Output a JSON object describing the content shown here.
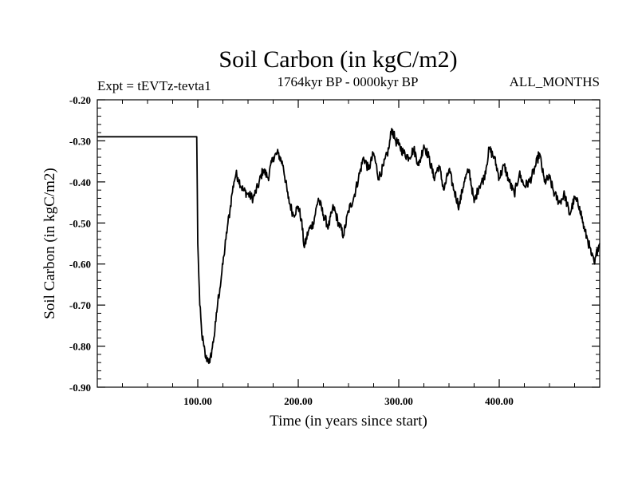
{
  "chart_data": {
    "type": "line",
    "title": "Soil Carbon (in kgC/m2)",
    "subtitle_left": "Expt = tEVTz-tevta1",
    "subtitle_center": "1764kyr BP - 0000kyr BP",
    "subtitle_right": "ALL_MONTHS",
    "xlabel": "Time (in years since start)",
    "ylabel": "Soil Carbon (in kgC/m2)",
    "xlim": [
      0,
      500
    ],
    "ylim": [
      -0.9,
      -0.2
    ],
    "x_ticks": [
      100,
      200,
      300,
      400
    ],
    "x_tick_labels": [
      "100.00",
      "200.00",
      "300.00",
      "400.00"
    ],
    "y_ticks": [
      -0.2,
      -0.3,
      -0.4,
      -0.5,
      -0.6,
      -0.7,
      -0.8,
      -0.9
    ],
    "y_tick_labels": [
      "-0.20",
      "-0.30",
      "-0.40",
      "-0.50",
      "-0.60",
      "-0.70",
      "-0.80",
      "-0.90"
    ],
    "grid": false,
    "series": [
      {
        "name": "Soil Carbon",
        "x": [
          0,
          20,
          40,
          60,
          80,
          99,
          100,
          102,
          104,
          106,
          108,
          110,
          112,
          114,
          116,
          118,
          120,
          122,
          124,
          126,
          128,
          130,
          132,
          134,
          136,
          138,
          140,
          145,
          150,
          155,
          160,
          165,
          170,
          175,
          180,
          185,
          190,
          195,
          200,
          203,
          206,
          210,
          215,
          220,
          225,
          230,
          235,
          240,
          245,
          250,
          255,
          260,
          265,
          270,
          275,
          280,
          285,
          290,
          293,
          297,
          300,
          305,
          310,
          315,
          320,
          325,
          330,
          335,
          340,
          345,
          350,
          355,
          360,
          365,
          370,
          375,
          380,
          385,
          390,
          395,
          400,
          405,
          410,
          415,
          420,
          425,
          430,
          435,
          440,
          445,
          450,
          455,
          460,
          465,
          470,
          475,
          480,
          485,
          488,
          490,
          492,
          495,
          498,
          500
        ],
        "y": [
          -0.29,
          -0.29,
          -0.29,
          -0.29,
          -0.29,
          -0.29,
          -0.55,
          -0.7,
          -0.77,
          -0.8,
          -0.83,
          -0.83,
          -0.84,
          -0.81,
          -0.78,
          -0.74,
          -0.69,
          -0.66,
          -0.62,
          -0.58,
          -0.54,
          -0.5,
          -0.47,
          -0.43,
          -0.4,
          -0.38,
          -0.39,
          -0.42,
          -0.43,
          -0.44,
          -0.41,
          -0.37,
          -0.39,
          -0.34,
          -0.33,
          -0.36,
          -0.44,
          -0.48,
          -0.46,
          -0.49,
          -0.56,
          -0.52,
          -0.5,
          -0.44,
          -0.48,
          -0.51,
          -0.46,
          -0.5,
          -0.53,
          -0.47,
          -0.44,
          -0.39,
          -0.34,
          -0.37,
          -0.33,
          -0.39,
          -0.36,
          -0.32,
          -0.27,
          -0.3,
          -0.31,
          -0.33,
          -0.34,
          -0.32,
          -0.36,
          -0.31,
          -0.34,
          -0.39,
          -0.36,
          -0.42,
          -0.37,
          -0.42,
          -0.46,
          -0.4,
          -0.37,
          -0.45,
          -0.41,
          -0.39,
          -0.32,
          -0.34,
          -0.39,
          -0.36,
          -0.4,
          -0.43,
          -0.38,
          -0.41,
          -0.4,
          -0.37,
          -0.33,
          -0.4,
          -0.39,
          -0.43,
          -0.45,
          -0.43,
          -0.48,
          -0.44,
          -0.46,
          -0.52,
          -0.54,
          -0.56,
          -0.58,
          -0.6,
          -0.56,
          -0.55
        ]
      }
    ]
  }
}
